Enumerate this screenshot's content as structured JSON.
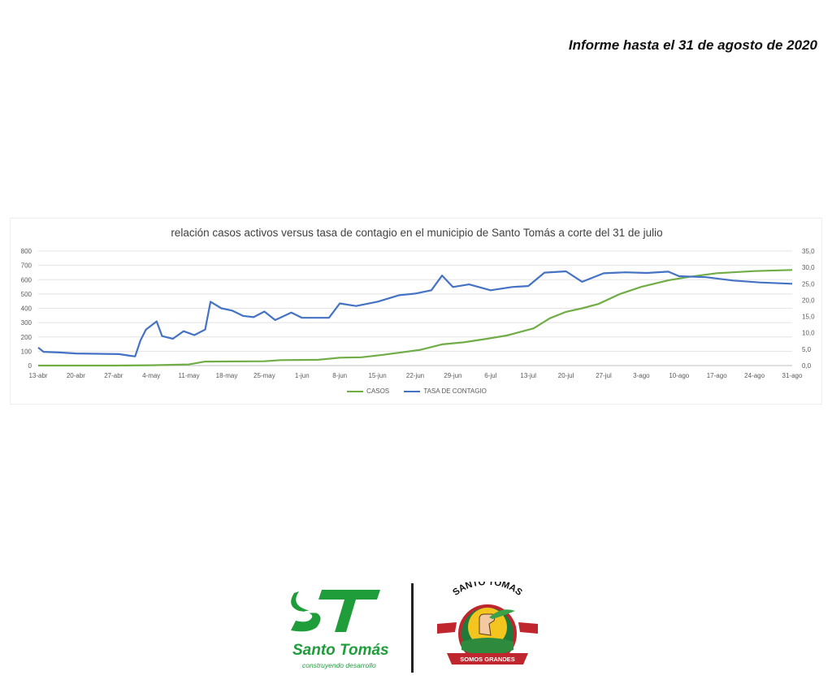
{
  "header": {
    "report_date": "Informe hasta el 31  de agosto de 2020"
  },
  "chart_data": {
    "type": "line",
    "title": "relación casos activos versus tasa de contagio en el municipio de Santo Tomás a corte del 31 de julio",
    "x_tick_labels": [
      "13-abr",
      "20-abr",
      "27-abr",
      "4-may",
      "11-may",
      "18-may",
      "25-may",
      "1-jun",
      "8-jun",
      "15-jun",
      "22-jun",
      "29-jun",
      "6-jul",
      "13-jul",
      "20-jul",
      "27-jul",
      "3-ago",
      "10-ago",
      "17-ago",
      "24-ago",
      "31-ago"
    ],
    "x_range": [
      "13-abr",
      "31-ago"
    ],
    "y_left": {
      "ticks": [
        "0",
        "100",
        "200",
        "300",
        "400",
        "500",
        "600",
        "700",
        "800"
      ],
      "range": [
        0,
        800
      ]
    },
    "y_right": {
      "ticks": [
        "0,0",
        "5,0",
        "10,0",
        "15,0",
        "20,0",
        "25,0",
        "30,0",
        "35,0"
      ],
      "range": [
        0,
        35
      ]
    },
    "grid": true,
    "legend_position": "bottom",
    "series": [
      {
        "name": "CASOS",
        "axis": "left",
        "color": "#70ad47",
        "points": [
          [
            "13-abr",
            0
          ],
          [
            "27-abr",
            0
          ],
          [
            "4-may",
            2
          ],
          [
            "11-may",
            8
          ],
          [
            "14-may",
            28
          ],
          [
            "25-may",
            30
          ],
          [
            "28-may",
            38
          ],
          [
            "4-jun",
            40
          ],
          [
            "8-jun",
            55
          ],
          [
            "12-jun",
            58
          ],
          [
            "16-jun",
            75
          ],
          [
            "20-jun",
            95
          ],
          [
            "23-jun",
            110
          ],
          [
            "27-jun",
            148
          ],
          [
            "1-jul",
            162
          ],
          [
            "5-jul",
            185
          ],
          [
            "9-jul",
            210
          ],
          [
            "14-jul",
            260
          ],
          [
            "17-jul",
            330
          ],
          [
            "20-jul",
            375
          ],
          [
            "23-jul",
            400
          ],
          [
            "26-jul",
            430
          ],
          [
            "30-jul",
            500
          ],
          [
            "3-ago",
            550
          ],
          [
            "8-ago",
            595
          ],
          [
            "12-ago",
            620
          ],
          [
            "17-ago",
            645
          ],
          [
            "24-ago",
            660
          ],
          [
            "31-ago",
            668
          ]
        ]
      },
      {
        "name": "TASA DE CONTAGIO",
        "axis": "right",
        "color": "#4472c4",
        "points": [
          [
            "13-abr",
            5.5
          ],
          [
            "14-abr",
            4.2
          ],
          [
            "17-abr",
            4.0
          ],
          [
            "20-abr",
            3.7
          ],
          [
            "24-abr",
            3.6
          ],
          [
            "28-abr",
            3.5
          ],
          [
            "30-abr",
            3.0
          ],
          [
            "1-may",
            2.8
          ],
          [
            "2-may",
            7.7
          ],
          [
            "3-may",
            11.0
          ],
          [
            "5-may",
            13.5
          ],
          [
            "6-may",
            9.0
          ],
          [
            "8-may",
            8.2
          ],
          [
            "10-may",
            10.5
          ],
          [
            "12-may",
            9.3
          ],
          [
            "14-may",
            11.0
          ],
          [
            "15-may",
            19.5
          ],
          [
            "17-may",
            17.5
          ],
          [
            "19-may",
            16.8
          ],
          [
            "21-may",
            15.2
          ],
          [
            "23-may",
            14.8
          ],
          [
            "25-may",
            16.5
          ],
          [
            "27-may",
            13.9
          ],
          [
            "30-may",
            16.2
          ],
          [
            "1-jun",
            14.6
          ],
          [
            "6-jun",
            14.6
          ],
          [
            "8-jun",
            19.0
          ],
          [
            "11-jun",
            18.2
          ],
          [
            "15-jun",
            19.5
          ],
          [
            "19-jun",
            21.5
          ],
          [
            "22-jun",
            22.0
          ],
          [
            "25-jun",
            23.0
          ],
          [
            "27-jun",
            27.5
          ],
          [
            "29-jun",
            24.0
          ],
          [
            "2-jul",
            24.8
          ],
          [
            "6-jul",
            23.0
          ],
          [
            "10-jul",
            24.0
          ],
          [
            "13-jul",
            24.3
          ],
          [
            "16-jul",
            28.4
          ],
          [
            "20-jul",
            28.8
          ],
          [
            "23-jul",
            25.6
          ],
          [
            "27-jul",
            28.2
          ],
          [
            "31-jul",
            28.5
          ],
          [
            "4-ago",
            28.3
          ],
          [
            "8-ago",
            28.7
          ],
          [
            "10-ago",
            27.3
          ],
          [
            "15-ago",
            27.0
          ],
          [
            "20-ago",
            26.0
          ],
          [
            "25-ago",
            25.4
          ],
          [
            "31-ago",
            25.0
          ]
        ]
      }
    ]
  },
  "logos": {
    "left": {
      "name": "Santo Tomás",
      "slogan": "construyendo desarrollo",
      "mark": "ST"
    },
    "right": {
      "arc_text": "SANTO TOMAS",
      "ribbon_text": "SOMOS GRANDES",
      "icon": "fist-with-leaves-emblem"
    }
  }
}
